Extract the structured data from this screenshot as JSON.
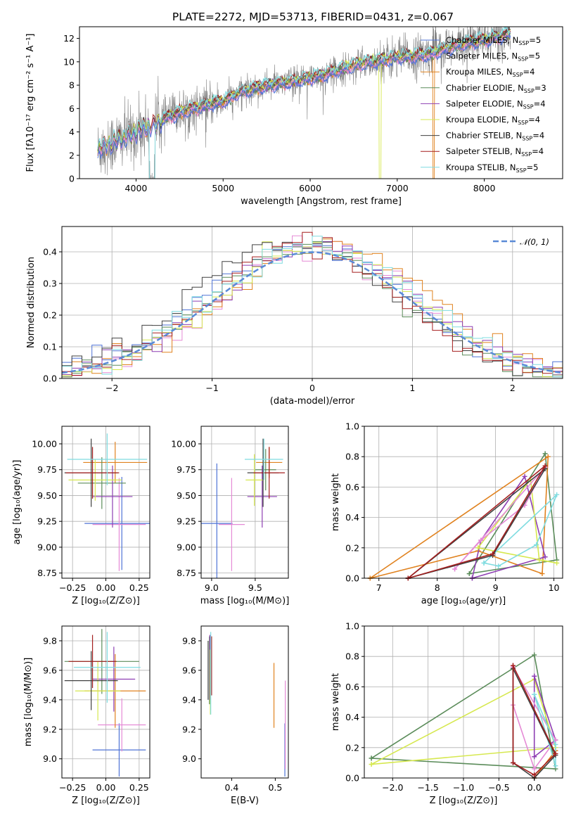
{
  "figure_title": "PLATE=2272, MJD=53713, FIBERID=0431, z=0.067",
  "legend_spectrum": [
    {
      "label": "Chabrier MILES, N",
      "sub": "SSP",
      "tail": "=5",
      "color": "#4f73d6"
    },
    {
      "label": "Salpeter MILES, N",
      "sub": "SSP",
      "tail": "=5",
      "color": "#e58ad6"
    },
    {
      "label": "Kroupa MILES, N",
      "sub": "SSP",
      "tail": "=4",
      "color": "#e0821f"
    },
    {
      "label": "Chabrier ELODIE, N",
      "sub": "SSP",
      "tail": "=3",
      "color": "#5b8c5a"
    },
    {
      "label": "Salpeter ELODIE, N",
      "sub": "SSP",
      "tail": "=4",
      "color": "#8e3fb3"
    },
    {
      "label": "Kroupa ELODIE, N",
      "sub": "SSP",
      "tail": "=4",
      "color": "#d6e84f"
    },
    {
      "label": "Chabrier STELIB, N",
      "sub": "SSP",
      "tail": "=4",
      "color": "#404040"
    },
    {
      "label": "Salpeter STELIB, N",
      "sub": "SSP",
      "tail": "=4",
      "color": "#a51f1f"
    },
    {
      "label": "Kroupa STELIB, N",
      "sub": "SSP",
      "tail": "=5",
      "color": "#7fdce0"
    }
  ],
  "chart_data": [
    {
      "type": "line",
      "id": "spectrum",
      "xlabel": "wavelength [Angstrom, rest frame]",
      "ylabel": "Flux [fλ10⁻¹⁷ erg cm⁻² s⁻¹ A⁻¹]",
      "xlim": [
        3350,
        8900
      ],
      "ylim": [
        0,
        13
      ],
      "xticks": [
        4000,
        5000,
        6000,
        7000,
        8000
      ],
      "yticks": [
        0,
        2,
        4,
        6,
        8,
        10,
        12
      ],
      "data_color": "#808080",
      "model_continuum_x": [
        3560,
        3650,
        3800,
        3950,
        4050,
        4200,
        4400,
        4600,
        4860,
        5000,
        5200,
        5400,
        5600,
        5800,
        6000,
        6200,
        6400,
        6600,
        6800,
        7000,
        7200,
        7400,
        7600,
        7800,
        8000,
        8200,
        8300
      ],
      "model_continuum_y": [
        2.5,
        2.8,
        3.3,
        3.8,
        4.2,
        4.6,
        5.4,
        5.9,
        6.4,
        6.6,
        7.4,
        7.8,
        8.1,
        8.3,
        8.6,
        9.0,
        9.5,
        9.9,
        10.1,
        10.4,
        10.5,
        10.7,
        11.2,
        11.6,
        11.9,
        12.2,
        12.4
      ]
    },
    {
      "type": "histogram",
      "id": "residuals",
      "xlabel": "(data-model)/error",
      "ylabel": "Normed distribution",
      "xlim": [
        -2.5,
        2.5
      ],
      "ylim": [
        0,
        0.48
      ],
      "xticks": [
        -2,
        -1,
        0,
        1,
        2
      ],
      "yticks": [
        0.0,
        0.1,
        0.2,
        0.3,
        0.4
      ],
      "grid": true,
      "legend": {
        "label": "𝒩(0, 1)",
        "position": "top-right"
      },
      "bin_width": 0.1,
      "bin_start": -2.5,
      "gaussian": {
        "mean": 0,
        "sigma": 1,
        "color": "#5a8ad6"
      }
    },
    {
      "type": "errorbar",
      "id": "age-vs-Z",
      "xlabel": "Z [log₁₀(Z/Z⊙)]",
      "ylabel": "age  [log₁₀(age/yr)]",
      "xlim": [
        -0.33,
        0.33
      ],
      "ylim": [
        8.7,
        10.17
      ],
      "xticks": [
        -0.25,
        0.0,
        0.25
      ],
      "yticks": [
        8.75,
        9.0,
        9.25,
        9.5,
        9.75,
        10.0
      ],
      "grid": true,
      "points": [
        {
          "x": 0.12,
          "y": 9.23,
          "xerr": 0.28,
          "yerr": 0.45,
          "color": "#4f73d6"
        },
        {
          "x": 0.1,
          "y": 9.22,
          "xerr": 0.2,
          "yerr": 0.45,
          "color": "#e58ad6"
        },
        {
          "x": 0.07,
          "y": 9.82,
          "xerr": 0.24,
          "yerr": 0.2,
          "color": "#e0821f"
        },
        {
          "x": -0.03,
          "y": 9.62,
          "xerr": 0.18,
          "yerr": 0.25,
          "color": "#5b8c5a"
        },
        {
          "x": 0.05,
          "y": 9.49,
          "xerr": 0.15,
          "yerr": 0.3,
          "color": "#8e3fb3"
        },
        {
          "x": -0.08,
          "y": 9.65,
          "xerr": 0.2,
          "yerr": 0.2,
          "color": "#d6e84f"
        },
        {
          "x": -0.11,
          "y": 9.72,
          "xerr": 0.2,
          "yerr": 0.33,
          "color": "#404040"
        },
        {
          "x": -0.1,
          "y": 9.72,
          "xerr": 0.2,
          "yerr": 0.25,
          "color": "#a51f1f"
        },
        {
          "x": 0.01,
          "y": 9.85,
          "xerr": 0.3,
          "yerr": 0.25,
          "color": "#7fdce0"
        }
      ]
    },
    {
      "type": "errorbar",
      "id": "age-vs-mass",
      "xlabel": "mass [log₁₀(M/M⊙)]",
      "xlim": [
        8.88,
        9.88
      ],
      "ylim": [
        8.7,
        10.17
      ],
      "xticks": [
        9.0,
        9.5
      ],
      "yticks": [
        8.75,
        9.0,
        9.25,
        9.5,
        9.75,
        10.0
      ],
      "grid": true,
      "points": [
        {
          "x": 9.06,
          "y": 9.23,
          "xerr": 0.18,
          "yerr": 0.58,
          "color": "#4f73d6"
        },
        {
          "x": 9.23,
          "y": 9.22,
          "xerr": 0.15,
          "yerr": 0.45,
          "color": "#e58ad6"
        },
        {
          "x": 9.66,
          "y": 9.82,
          "xerr": 0.15,
          "yerr": 0.15,
          "color": "#e0821f"
        },
        {
          "x": 9.62,
          "y": 9.75,
          "xerr": 0.12,
          "yerr": 0.2,
          "color": "#5b8c5a"
        },
        {
          "x": 9.58,
          "y": 9.49,
          "xerr": 0.17,
          "yerr": 0.3,
          "color": "#8e3fb3"
        },
        {
          "x": 9.49,
          "y": 9.65,
          "xerr": 0.1,
          "yerr": 0.25,
          "color": "#d6e84f"
        },
        {
          "x": 9.59,
          "y": 9.72,
          "xerr": 0.18,
          "yerr": 0.33,
          "color": "#404040"
        },
        {
          "x": 9.66,
          "y": 9.72,
          "xerr": 0.18,
          "yerr": 0.25,
          "color": "#a51f1f"
        },
        {
          "x": 9.6,
          "y": 9.85,
          "xerr": 0.22,
          "yerr": 0.2,
          "color": "#7fdce0"
        }
      ]
    },
    {
      "type": "line",
      "id": "weight-vs-age",
      "xlabel": "age  [log₁₀(age/yr)]",
      "ylabel": "mass weight",
      "xlim": [
        6.75,
        10.15
      ],
      "ylim": [
        0,
        1.0
      ],
      "xticks": [
        7,
        8,
        9,
        10
      ],
      "yticks": [
        0.0,
        0.2,
        0.4,
        0.6,
        0.8,
        1.0
      ],
      "grid": true,
      "series": [
        {
          "color": "#5b8c5a",
          "x": [
            8.55,
            9.85,
            10.05,
            8.55
          ],
          "y": [
            0.03,
            0.82,
            0.12,
            0.03
          ]
        },
        {
          "color": "#e0821f",
          "x": [
            6.85,
            8.7,
            9.8,
            9.9,
            6.85
          ],
          "y": [
            0.0,
            0.18,
            0.03,
            0.8,
            0.0
          ]
        },
        {
          "color": "#8e3fb3",
          "x": [
            8.6,
            8.75,
            9.5,
            9.85,
            8.6
          ],
          "y": [
            0.0,
            0.25,
            0.67,
            0.14,
            0.0
          ]
        },
        {
          "color": "#d6e84f",
          "x": [
            8.7,
            9.6,
            9.75,
            10.05,
            8.7
          ],
          "y": [
            0.2,
            0.65,
            0.12,
            0.1,
            0.2
          ]
        },
        {
          "color": "#e58ad6",
          "x": [
            8.3,
            8.75,
            9.5,
            9.85,
            8.3
          ],
          "y": [
            0.06,
            0.25,
            0.48,
            0.73,
            0.06
          ]
        },
        {
          "color": "#7fdce0",
          "x": [
            8.8,
            9.05,
            9.7,
            10.05,
            8.8
          ],
          "y": [
            0.1,
            0.08,
            0.22,
            0.55,
            0.1
          ]
        },
        {
          "color": "#404040",
          "x": [
            7.5,
            8.95,
            9.85,
            7.5
          ],
          "y": [
            0.0,
            0.15,
            0.72,
            0.0
          ]
        },
        {
          "color": "#a51f1f",
          "x": [
            7.5,
            8.95,
            9.85,
            7.5
          ],
          "y": [
            0.0,
            0.16,
            0.74,
            0.0
          ]
        }
      ]
    },
    {
      "type": "errorbar",
      "id": "mass-vs-Z",
      "xlabel": "Z [log₁₀(Z/Z⊙)]",
      "ylabel": "mass [log₁₀(M/M⊙)]",
      "xlim": [
        -0.33,
        0.33
      ],
      "ylim": [
        8.87,
        9.9
      ],
      "xticks": [
        -0.25,
        0.0,
        0.25
      ],
      "yticks": [
        9.0,
        9.2,
        9.4,
        9.6,
        9.8
      ],
      "grid": true,
      "points": [
        {
          "x": 0.1,
          "y": 9.06,
          "xerr": 0.2,
          "yerr": 0.18,
          "color": "#4f73d6"
        },
        {
          "x": 0.12,
          "y": 9.23,
          "xerr": 0.18,
          "yerr": 0.18,
          "color": "#e58ad6"
        },
        {
          "x": 0.07,
          "y": 9.46,
          "xerr": 0.23,
          "yerr": 0.25,
          "color": "#e0821f"
        },
        {
          "x": -0.03,
          "y": 9.66,
          "xerr": 0.28,
          "yerr": 0.22,
          "color": "#5b8c5a"
        },
        {
          "x": 0.06,
          "y": 9.54,
          "xerr": 0.16,
          "yerr": 0.22,
          "color": "#8e3fb3"
        },
        {
          "x": -0.06,
          "y": 9.46,
          "xerr": 0.17,
          "yerr": 0.2,
          "color": "#d6e84f"
        },
        {
          "x": -0.11,
          "y": 9.53,
          "xerr": 0.2,
          "yerr": 0.2,
          "color": "#404040"
        },
        {
          "x": -0.1,
          "y": 9.66,
          "xerr": 0.18,
          "yerr": 0.18,
          "color": "#a51f1f"
        },
        {
          "x": 0.01,
          "y": 9.62,
          "xerr": 0.25,
          "yerr": 0.24,
          "color": "#7fdce0"
        }
      ]
    },
    {
      "type": "errorbar",
      "id": "mass-vs-ebv",
      "xlabel": "E(B-V)",
      "xlim": [
        0.33,
        0.53
      ],
      "ylim": [
        8.87,
        9.9
      ],
      "xticks": [
        0.4,
        0.5
      ],
      "yticks": [
        9.0,
        9.2,
        9.4,
        9.6,
        9.8
      ],
      "grid": false,
      "points": [
        {
          "x": 0.522,
          "y": 9.06,
          "xerr": 0,
          "yerr": 0.18,
          "color": "#4f73d6"
        },
        {
          "x": 0.523,
          "y": 9.23,
          "xerr": 0,
          "yerr": 0.3,
          "color": "#e58ad6"
        },
        {
          "x": 0.497,
          "y": 9.43,
          "xerr": 0,
          "yerr": 0.22,
          "color": "#e0821f"
        },
        {
          "x": 0.349,
          "y": 9.6,
          "xerr": 0,
          "yerr": 0.23,
          "color": "#5b8c5a"
        },
        {
          "x": 0.35,
          "y": 9.62,
          "xerr": 0,
          "yerr": 0.22,
          "color": "#8e3fb3"
        },
        {
          "x": 0.351,
          "y": 9.52,
          "xerr": 0,
          "yerr": 0.22,
          "color": "#d6e84f"
        },
        {
          "x": 0.346,
          "y": 9.6,
          "xerr": 0,
          "yerr": 0.2,
          "color": "#404040"
        },
        {
          "x": 0.354,
          "y": 9.63,
          "xerr": 0,
          "yerr": 0.2,
          "color": "#a51f1f"
        },
        {
          "x": 0.352,
          "y": 9.58,
          "xerr": 0,
          "yerr": 0.28,
          "color": "#7fdce0"
        }
      ]
    },
    {
      "type": "line",
      "id": "weight-vs-Z",
      "xlabel": "Z [log₁₀(Z/Z⊙)]",
      "ylabel": "mass weight",
      "xlim": [
        -2.4,
        0.4
      ],
      "ylim": [
        0,
        1.0
      ],
      "xticks": [
        -2.0,
        -1.5,
        -1.0,
        -0.5,
        0.0
      ],
      "yticks": [
        0.0,
        0.2,
        0.4,
        0.6,
        0.8,
        1.0
      ],
      "grid": true,
      "series": [
        {
          "color": "#5b8c5a",
          "x": [
            -2.3,
            0.0,
            0.3,
            -2.3
          ],
          "y": [
            0.13,
            0.81,
            0.06,
            0.13
          ]
        },
        {
          "color": "#d6e84f",
          "x": [
            -2.3,
            0.0,
            0.3,
            -2.3
          ],
          "y": [
            0.09,
            0.65,
            0.2,
            0.09
          ]
        },
        {
          "color": "#e0821f",
          "x": [
            0.0,
            0.3,
            0.0
          ],
          "y": [
            0.0,
            0.18,
            0.0
          ]
        },
        {
          "color": "#8e3fb3",
          "x": [
            0.0,
            0.0,
            0.3,
            0.0
          ],
          "y": [
            0.67,
            0.14,
            0.25,
            0.67
          ]
        },
        {
          "color": "#e58ad6",
          "x": [
            -0.3,
            -0.3,
            0.0,
            0.3,
            -0.3
          ],
          "y": [
            0.73,
            0.48,
            0.06,
            0.25,
            0.73
          ]
        },
        {
          "color": "#7fdce0",
          "x": [
            0.0,
            0.3,
            0.3,
            0.0
          ],
          "y": [
            0.55,
            0.22,
            0.08,
            0.55
          ]
        },
        {
          "color": "#404040",
          "x": [
            -0.3,
            -0.3,
            0.0,
            0.3,
            -0.3
          ],
          "y": [
            0.72,
            0.1,
            0.0,
            0.15,
            0.72
          ]
        },
        {
          "color": "#a51f1f",
          "x": [
            -0.3,
            -0.3,
            0.0,
            0.3,
            -0.3
          ],
          "y": [
            0.74,
            0.1,
            0.02,
            0.16,
            0.74
          ]
        }
      ]
    }
  ]
}
